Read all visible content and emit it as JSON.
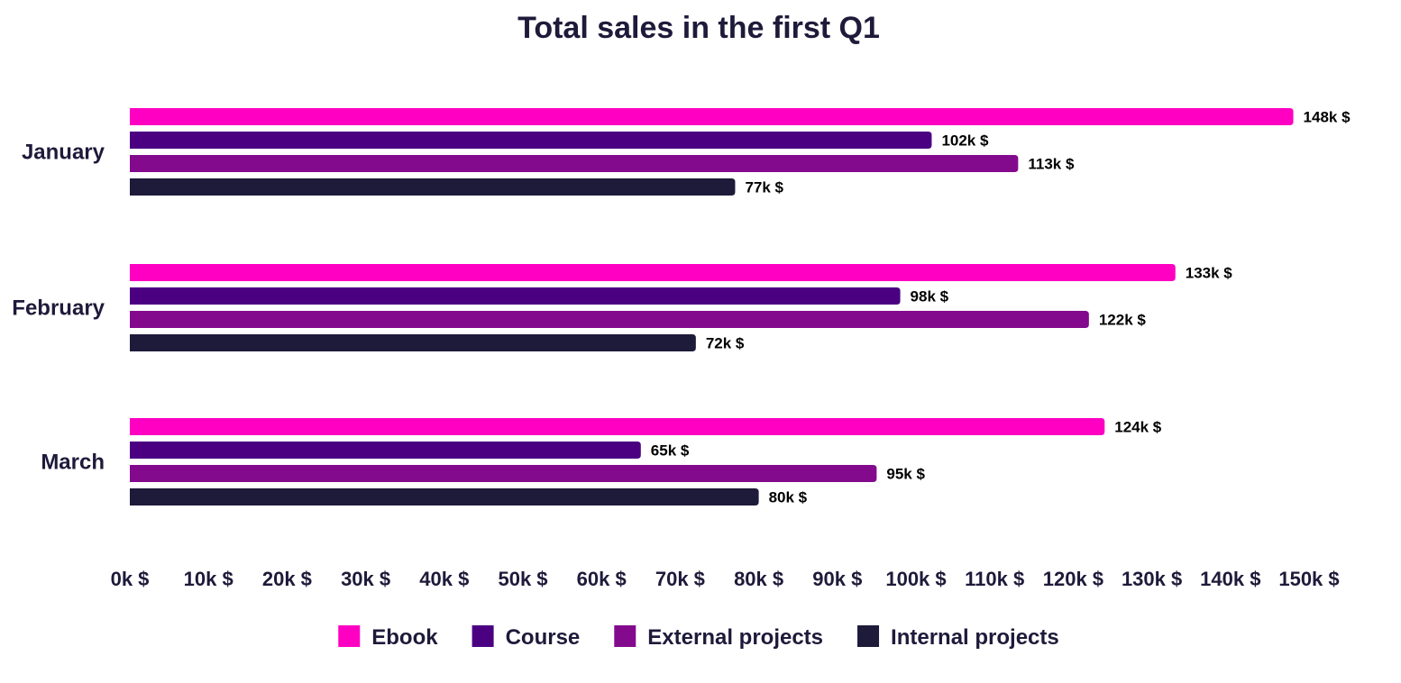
{
  "chart_data": {
    "type": "bar",
    "orientation": "horizontal",
    "title": "Total sales in the first Q1",
    "categories": [
      "January",
      "February",
      "March"
    ],
    "series": [
      {
        "name": "Ebook",
        "color": "#ff00c3",
        "values": [
          148,
          133,
          124
        ],
        "labels": [
          "148k $",
          "133k $",
          "124k $"
        ]
      },
      {
        "name": "Course",
        "color": "#4b0082",
        "values": [
          102,
          98,
          65
        ],
        "labels": [
          "102k $",
          "98k $",
          "65k $"
        ]
      },
      {
        "name": "External projects",
        "color": "#830a8d",
        "values": [
          113,
          122,
          95
        ],
        "labels": [
          "113k $",
          "122k $",
          "95k $"
        ]
      },
      {
        "name": "Internal projects",
        "color": "#1e1a3a",
        "values": [
          77,
          72,
          80
        ],
        "labels": [
          "77k $",
          "72k $",
          "80k $"
        ]
      }
    ],
    "xlim": [
      0,
      150
    ],
    "xticks": [
      0,
      10,
      20,
      30,
      40,
      50,
      60,
      70,
      80,
      90,
      100,
      110,
      120,
      130,
      140,
      150
    ],
    "xtick_labels": [
      "0k $",
      "10k $",
      "20k $",
      "30k $",
      "40k $",
      "50k $",
      "60k $",
      "70k $",
      "80k $",
      "90k $",
      "100k $",
      "110k $",
      "120k $",
      "130k $",
      "140k $",
      "150k $"
    ],
    "xlabel": "",
    "ylabel": "",
    "grid": false,
    "legend_position": "bottom"
  }
}
